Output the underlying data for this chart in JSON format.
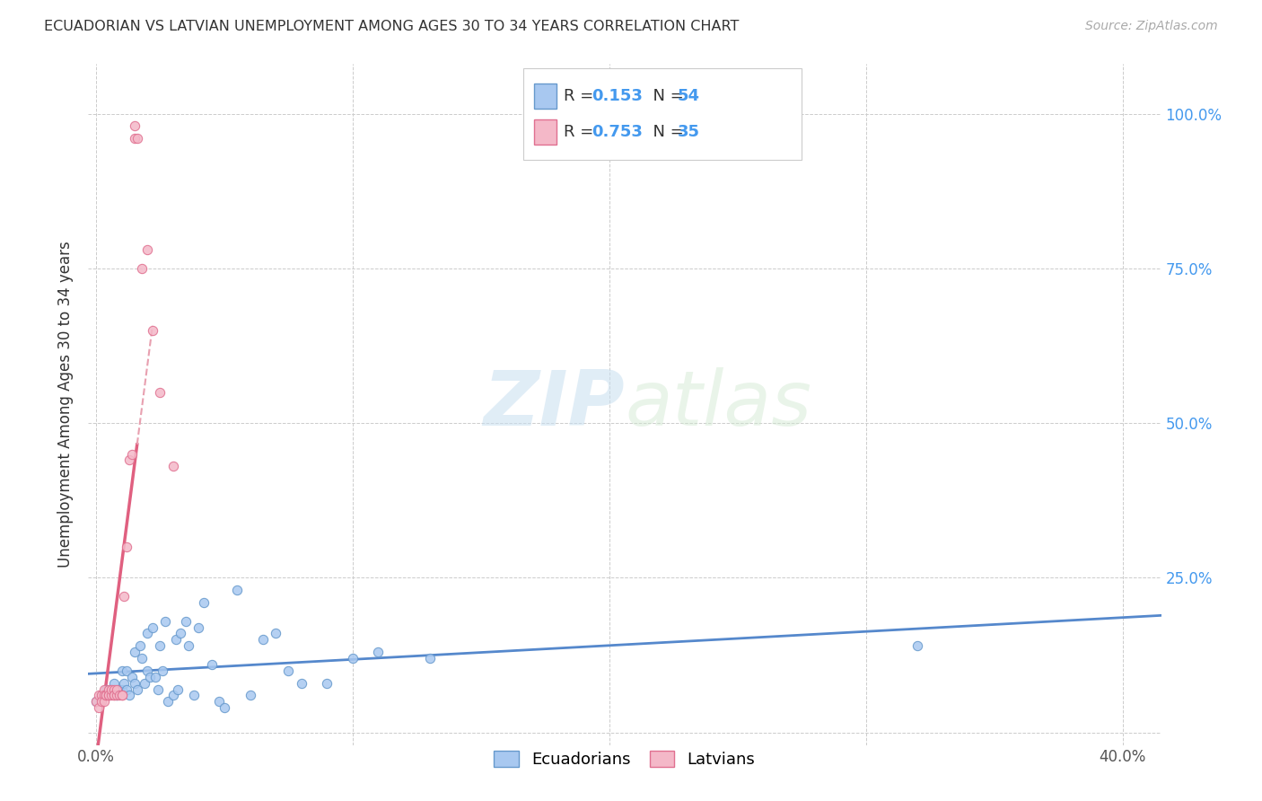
{
  "title": "ECUADORIAN VS LATVIAN UNEMPLOYMENT AMONG AGES 30 TO 34 YEARS CORRELATION CHART",
  "source": "Source: ZipAtlas.com",
  "ylabel": "Unemployment Among Ages 30 to 34 years",
  "xlim": [
    -0.003,
    0.415
  ],
  "ylim": [
    -0.02,
    1.08
  ],
  "ecuadorians_x": [
    0.0,
    0.002,
    0.004,
    0.005,
    0.006,
    0.007,
    0.008,
    0.009,
    0.01,
    0.01,
    0.011,
    0.012,
    0.012,
    0.013,
    0.014,
    0.015,
    0.015,
    0.016,
    0.017,
    0.018,
    0.019,
    0.02,
    0.02,
    0.021,
    0.022,
    0.023,
    0.024,
    0.025,
    0.026,
    0.027,
    0.028,
    0.03,
    0.031,
    0.032,
    0.033,
    0.035,
    0.036,
    0.038,
    0.04,
    0.042,
    0.045,
    0.048,
    0.05,
    0.055,
    0.06,
    0.065,
    0.07,
    0.075,
    0.08,
    0.09,
    0.1,
    0.11,
    0.13,
    0.32
  ],
  "ecuadorians_y": [
    0.05,
    0.06,
    0.07,
    0.06,
    0.07,
    0.08,
    0.06,
    0.07,
    0.1,
    0.07,
    0.08,
    0.1,
    0.07,
    0.06,
    0.09,
    0.13,
    0.08,
    0.07,
    0.14,
    0.12,
    0.08,
    0.16,
    0.1,
    0.09,
    0.17,
    0.09,
    0.07,
    0.14,
    0.1,
    0.18,
    0.05,
    0.06,
    0.15,
    0.07,
    0.16,
    0.18,
    0.14,
    0.06,
    0.17,
    0.21,
    0.11,
    0.05,
    0.04,
    0.23,
    0.06,
    0.15,
    0.16,
    0.1,
    0.08,
    0.08,
    0.12,
    0.13,
    0.12,
    0.14
  ],
  "latvians_x": [
    0.0,
    0.001,
    0.001,
    0.002,
    0.002,
    0.003,
    0.003,
    0.003,
    0.004,
    0.004,
    0.005,
    0.005,
    0.005,
    0.006,
    0.006,
    0.007,
    0.007,
    0.007,
    0.008,
    0.008,
    0.009,
    0.01,
    0.01,
    0.011,
    0.012,
    0.013,
    0.014,
    0.015,
    0.015,
    0.016,
    0.018,
    0.02,
    0.022,
    0.025,
    0.03
  ],
  "latvians_y": [
    0.05,
    0.06,
    0.04,
    0.06,
    0.05,
    0.07,
    0.06,
    0.05,
    0.06,
    0.06,
    0.06,
    0.07,
    0.06,
    0.06,
    0.07,
    0.07,
    0.06,
    0.06,
    0.06,
    0.07,
    0.06,
    0.06,
    0.06,
    0.22,
    0.3,
    0.44,
    0.45,
    0.98,
    0.96,
    0.96,
    0.75,
    0.78,
    0.65,
    0.55,
    0.43
  ],
  "ecu_color": "#a8c8f0",
  "lat_color": "#f4b8c8",
  "ecu_edge_color": "#6699cc",
  "lat_edge_color": "#e07090",
  "ecu_trend_color": "#5588cc",
  "lat_trend_color": "#e06080",
  "lat_trend_dashed_color": "#e8a0b0",
  "ecu_R": 0.153,
  "ecu_N": 54,
  "lat_R": 0.753,
  "lat_N": 35,
  "legend_color": "#4499ee",
  "watermark_color": "#c8dff0",
  "background_color": "#ffffff",
  "grid_color": "#cccccc"
}
